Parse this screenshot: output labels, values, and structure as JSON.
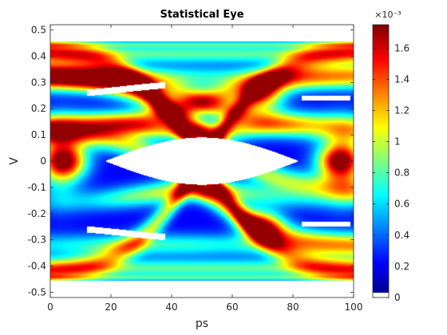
{
  "chart_data": {
    "type": "heatmap",
    "title": "Statistical Eye",
    "xlabel": "ps",
    "ylabel": "V",
    "xlim": [
      0,
      100
    ],
    "ylim": [
      -0.52,
      0.52
    ],
    "xticks": [
      0,
      20,
      40,
      60,
      80,
      100
    ],
    "yticks": [
      0.5,
      0.4,
      0.3,
      0.2,
      0.1,
      0,
      -0.1,
      -0.2,
      -0.3,
      -0.4,
      -0.5
    ],
    "colorbar": {
      "colormap": "jet",
      "range": [
        0,
        0.00175
      ],
      "exponent_label": "×10⁻³",
      "ticks": [
        0,
        0.2,
        0.4,
        0.6,
        0.8,
        1,
        1.2,
        1.4,
        1.6
      ],
      "tick_labels": [
        "0",
        "0.2",
        "0.4",
        "0.6",
        "0.8",
        "1",
        "1.2",
        "1.4",
        "1.6"
      ]
    },
    "eye_model": {
      "unit_interval_ps": 100,
      "crossing_ps": [
        0,
        100
      ],
      "outer_rail_v": [
        0.445,
        -0.445
      ],
      "inner_rail_v": [
        0.25,
        -0.25
      ],
      "eye_opening_v": [
        0.09,
        -0.09
      ],
      "hot_spots": [
        {
          "x": 5,
          "y": 0,
          "density": 0.00175
        },
        {
          "x": 95,
          "y": 0,
          "density": 0.00175
        },
        {
          "x": 70,
          "y": 0.25,
          "density": 0.0014
        },
        {
          "x": 70,
          "y": -0.25,
          "density": 0.0014
        }
      ]
    },
    "grid": false
  }
}
